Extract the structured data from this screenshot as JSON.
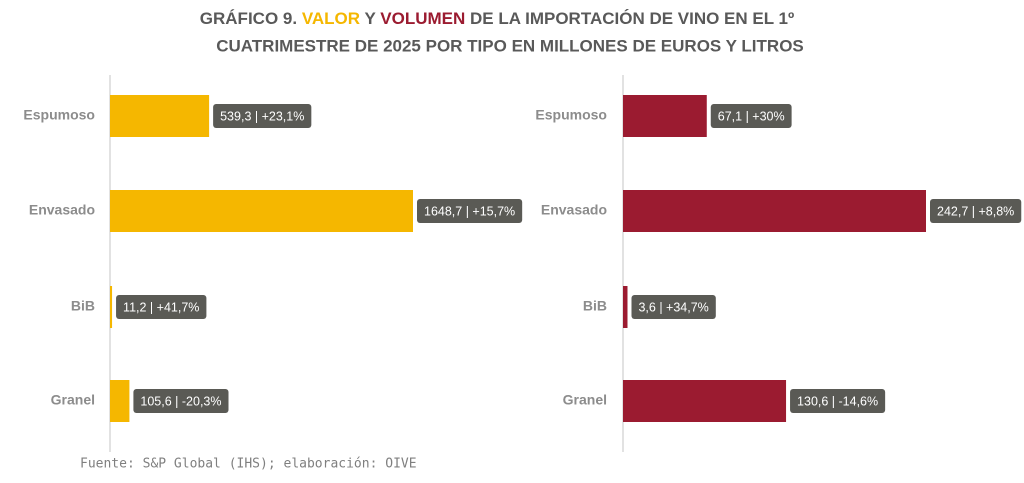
{
  "title": {
    "prefix": "GRÁFICO 9.",
    "valor": "VALOR",
    "y": "Y",
    "volumen": "VOLUMEN",
    "line1_rest": "DE LA IMPORTACIÓN DE VINO EN EL 1º",
    "line2": "CUATRIMESTRE DE 2025 POR TIPO EN MILLONES DE EUROS Y LITROS"
  },
  "source": "Fuente: S&P Global (IHS); elaboración: OIVE",
  "chart_data": [
    {
      "type": "bar",
      "orientation": "horizontal",
      "categories": [
        "Espumoso",
        "Envasado",
        "BiB",
        "Granel"
      ],
      "values": [
        539.3,
        1648.7,
        11.2,
        105.6
      ],
      "value_labels": [
        "539,3 | +23,1%",
        "1648,7 | +15,7%",
        "11,2 | +41,7%",
        "105,6 | -20,3%"
      ],
      "color": "#f5b700"
    },
    {
      "type": "bar",
      "orientation": "horizontal",
      "categories": [
        "Espumoso",
        "Envasado",
        "BiB",
        "Granel"
      ],
      "values": [
        67.1,
        242.7,
        3.6,
        130.6
      ],
      "value_labels": [
        "67,1 | +30%",
        "242,7 | +8,8%",
        "3,6 | +34,7%",
        "130,6 | -14,6%"
      ],
      "color": "#9b1b30"
    }
  ]
}
